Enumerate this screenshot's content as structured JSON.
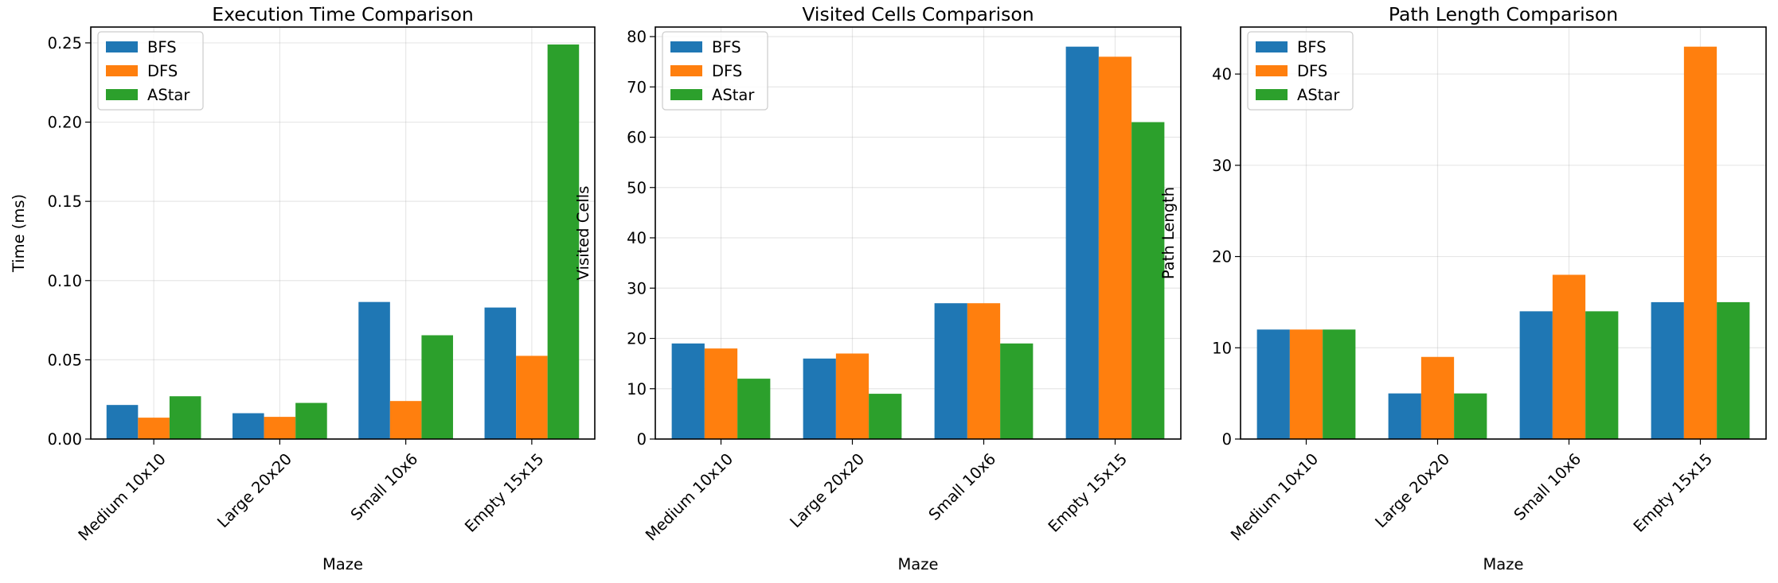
{
  "chart_data": [
    {
      "type": "bar",
      "title": "Execution Time Comparison",
      "xlabel": "Maze",
      "ylabel": "Time (ms)",
      "categories": [
        "Medium 10x10",
        "Large 20x20",
        "Small 10x6",
        "Empty 15x15"
      ],
      "series": [
        {
          "name": "BFS",
          "color": "#1f77b4",
          "values": [
            0.0215,
            0.0163,
            0.0865,
            0.083
          ]
        },
        {
          "name": "DFS",
          "color": "#ff7f0e",
          "values": [
            0.0135,
            0.014,
            0.024,
            0.0525
          ]
        },
        {
          "name": "AStar",
          "color": "#2ca02c",
          "values": [
            0.027,
            0.0228,
            0.0655,
            0.249
          ]
        }
      ],
      "ylim": [
        0,
        0.26
      ],
      "yticks": [
        0.0,
        0.05,
        0.1,
        0.15,
        0.2,
        0.25
      ],
      "ytick_labels": [
        "0.00",
        "0.05",
        "0.10",
        "0.15",
        "0.20",
        "0.25"
      ],
      "grid": true,
      "legend": "top-left"
    },
    {
      "type": "bar",
      "title": "Visited Cells Comparison",
      "xlabel": "Maze",
      "ylabel": "Visited Cells",
      "categories": [
        "Medium 10x10",
        "Large 20x20",
        "Small 10x6",
        "Empty 15x15"
      ],
      "series": [
        {
          "name": "BFS",
          "color": "#1f77b4",
          "values": [
            19,
            16,
            27,
            78
          ]
        },
        {
          "name": "DFS",
          "color": "#ff7f0e",
          "values": [
            18,
            17,
            27,
            76
          ]
        },
        {
          "name": "AStar",
          "color": "#2ca02c",
          "values": [
            12,
            9,
            19,
            63
          ]
        }
      ],
      "ylim": [
        0,
        81.9
      ],
      "yticks": [
        0,
        10,
        20,
        30,
        40,
        50,
        60,
        70,
        80
      ],
      "ytick_labels": [
        "0",
        "10",
        "20",
        "30",
        "40",
        "50",
        "60",
        "70",
        "80"
      ],
      "grid": true,
      "legend": "top-left"
    },
    {
      "type": "bar",
      "title": "Path Length Comparison",
      "xlabel": "Maze",
      "ylabel": "Path Length",
      "categories": [
        "Medium 10x10",
        "Large 20x20",
        "Small 10x6",
        "Empty 15x15"
      ],
      "series": [
        {
          "name": "BFS",
          "color": "#1f77b4",
          "values": [
            12,
            5,
            14,
            15
          ]
        },
        {
          "name": "DFS",
          "color": "#ff7f0e",
          "values": [
            12,
            9,
            18,
            43
          ]
        },
        {
          "name": "AStar",
          "color": "#2ca02c",
          "values": [
            12,
            5,
            14,
            15
          ]
        }
      ],
      "ylim": [
        0,
        45.15
      ],
      "yticks": [
        0,
        10,
        20,
        30,
        40
      ],
      "ytick_labels": [
        "0",
        "10",
        "20",
        "30",
        "40"
      ],
      "grid": true,
      "legend": "top-left"
    }
  ]
}
